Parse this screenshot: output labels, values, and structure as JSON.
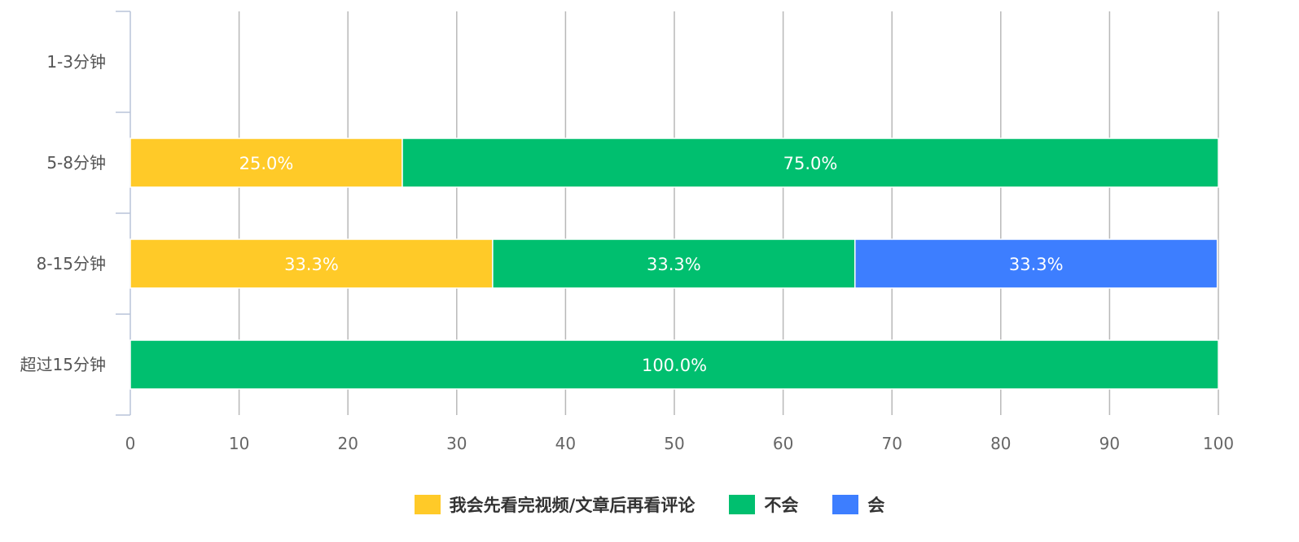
{
  "chart_data": {
    "type": "bar",
    "orientation": "horizontal",
    "stacked": true,
    "title": "",
    "xlabel": "",
    "ylabel": "",
    "xlim": [
      0,
      100
    ],
    "x_ticks": [
      0,
      10,
      20,
      30,
      40,
      50,
      60,
      70,
      80,
      90,
      100
    ],
    "grid": true,
    "legend_position": "bottom-center",
    "categories": [
      "1-3分钟",
      "5-8分钟",
      "8-15分钟",
      "超过15分钟"
    ],
    "series": [
      {
        "name": "我会先看完视频/文章后再看评论",
        "color": "#FFCA28",
        "values": [
          0,
          25.0,
          33.3,
          0
        ],
        "labels": [
          "",
          "25.0%",
          "33.3%",
          ""
        ]
      },
      {
        "name": "不会",
        "color": "#00BF6F",
        "values": [
          0,
          75.0,
          33.3,
          100.0
        ],
        "labels": [
          "",
          "75.0%",
          "33.3%",
          "100.0%"
        ]
      },
      {
        "name": "会",
        "color": "#3D7EFF",
        "values": [
          0,
          0,
          33.3,
          0
        ],
        "labels": [
          "",
          "",
          "33.3%",
          ""
        ]
      }
    ]
  }
}
